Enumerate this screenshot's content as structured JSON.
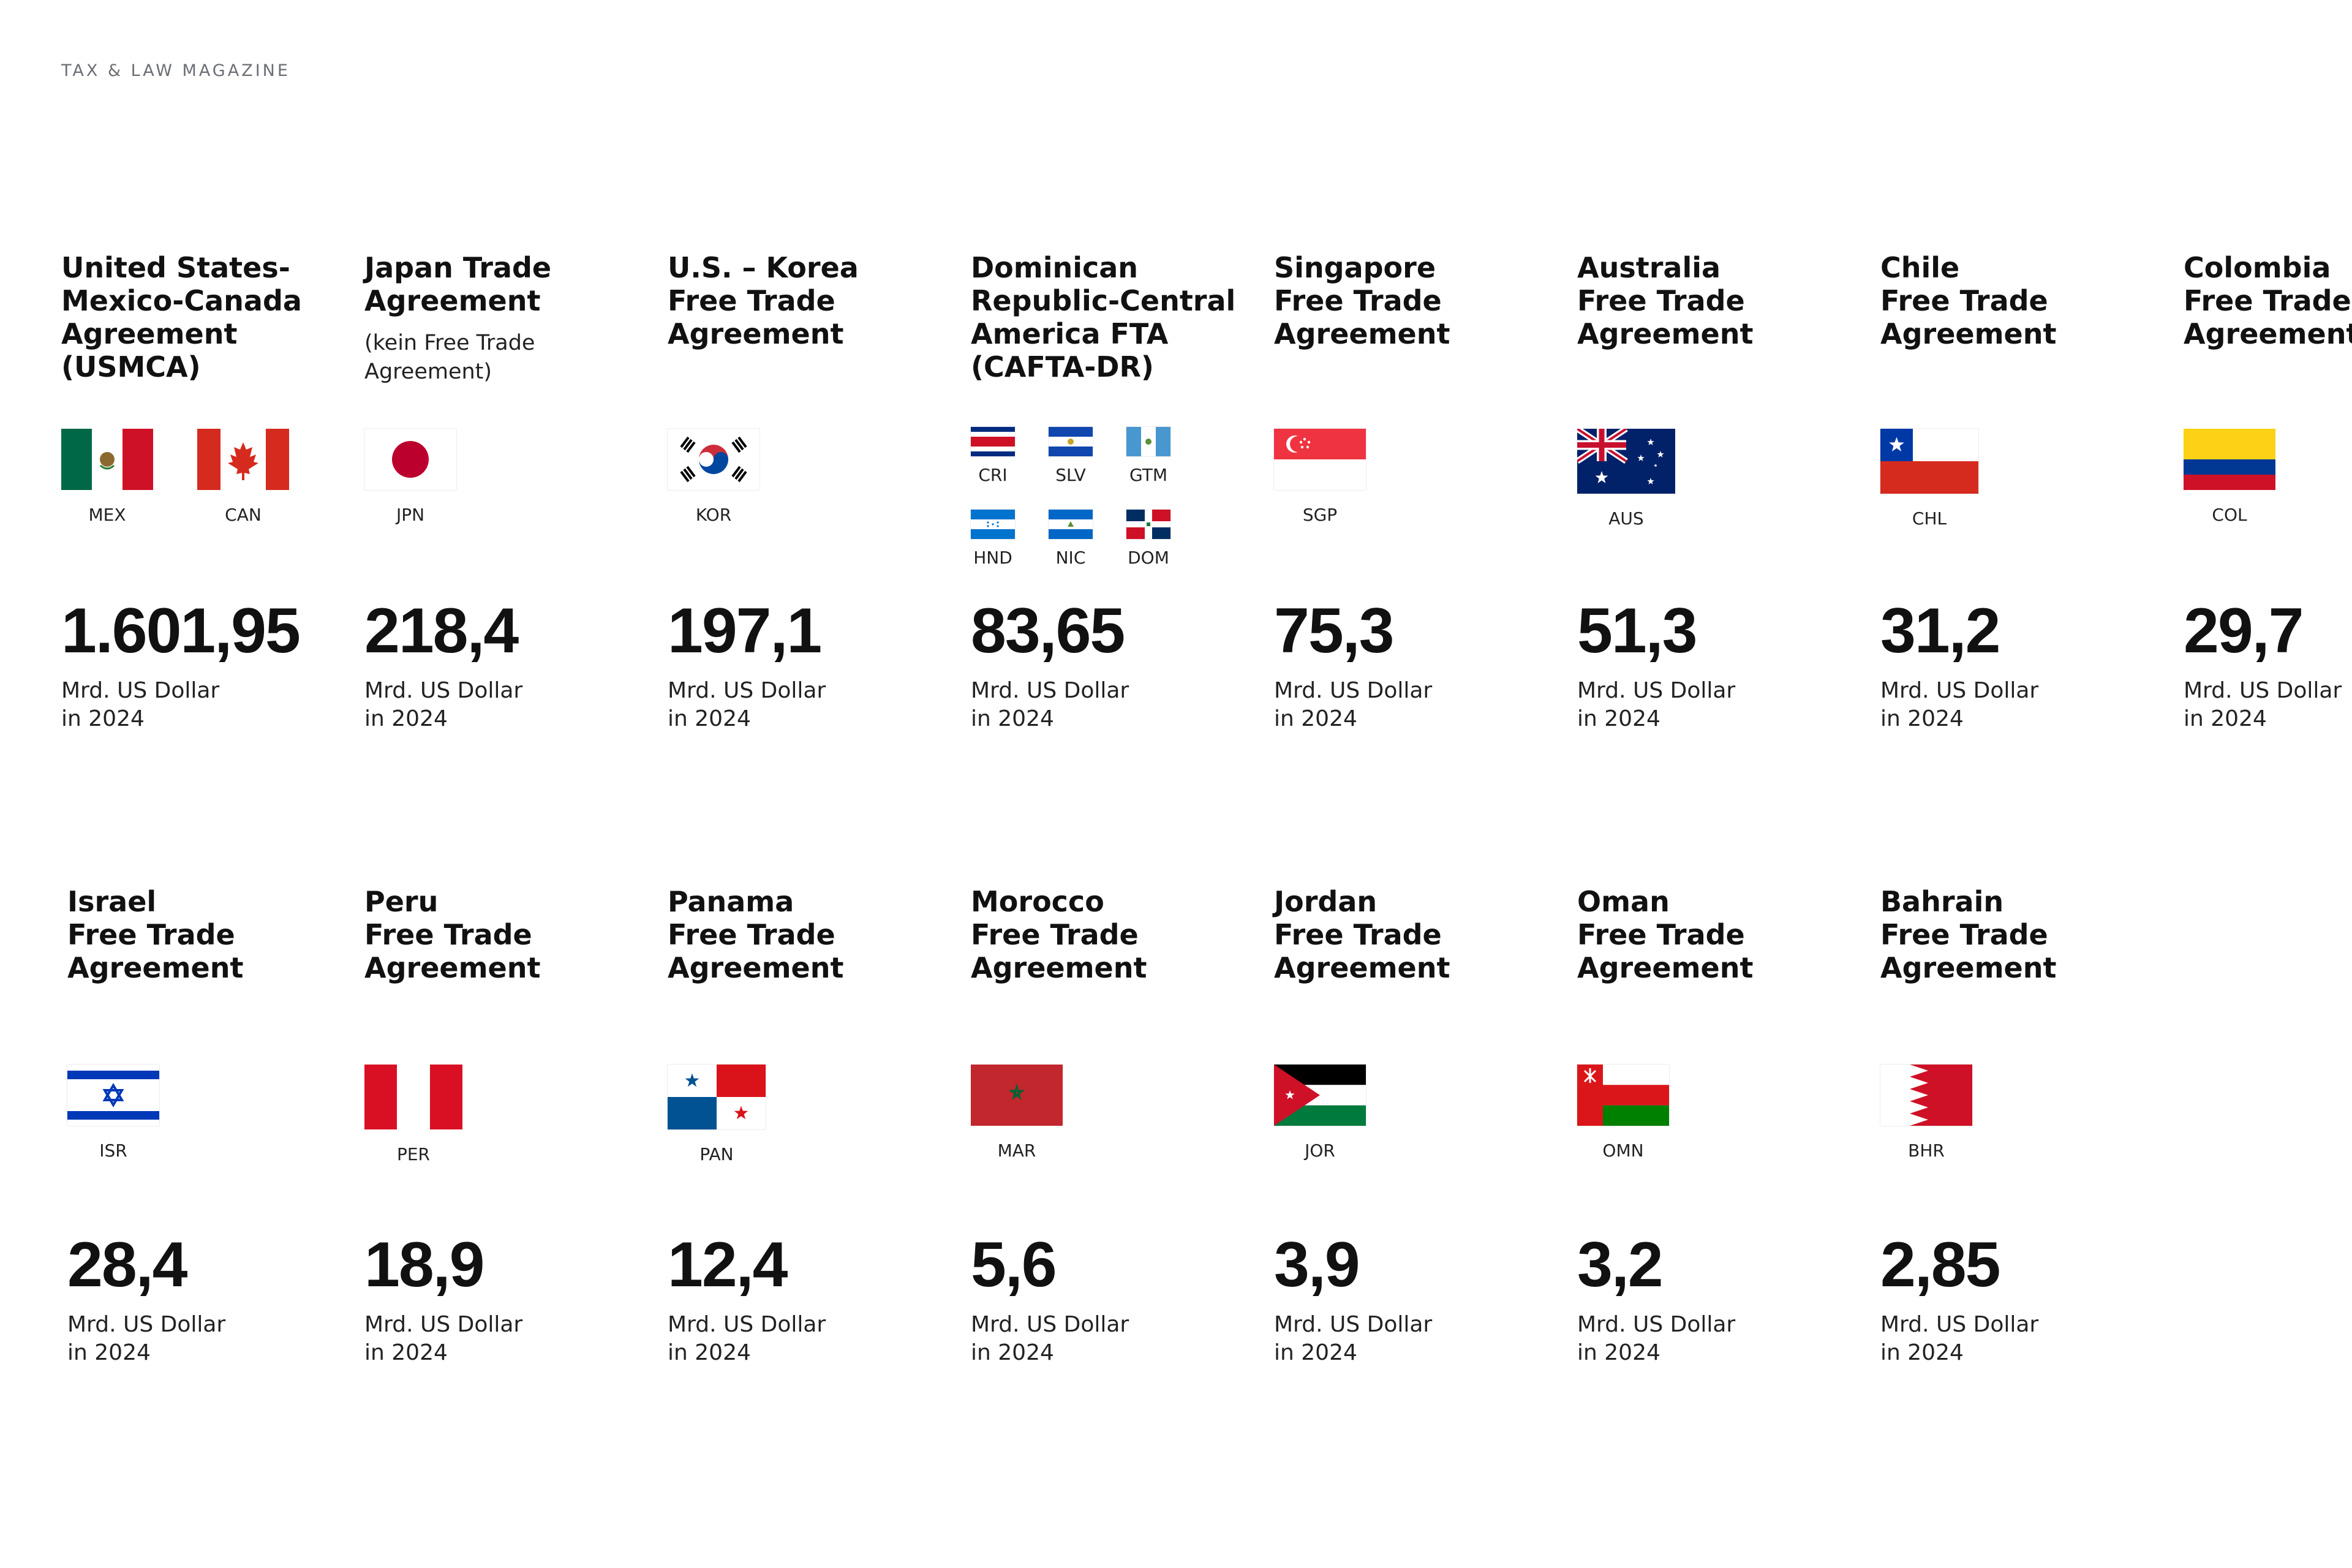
{
  "header": {
    "magazine": "TAX & LAW MAGAZINE"
  },
  "agreements": [
    {
      "title": "United States-\nMexico-Canada\nAgreement\n(USMCA)",
      "flags": [
        {
          "code": "MEX"
        },
        {
          "code": "CAN"
        }
      ],
      "value": "1.601,95",
      "unit": "Mrd. US Dollar",
      "year": "in 2024"
    },
    {
      "title": "Japan Trade\nAgreement",
      "subtitle": "(kein Free Trade\nAgreement)",
      "flags": [
        {
          "code": "JPN"
        }
      ],
      "value": "218,4",
      "unit": "Mrd. US Dollar",
      "year": "in 2024"
    },
    {
      "title": "U.S. – Korea\nFree Trade\nAgreement",
      "flags": [
        {
          "code": "KOR"
        }
      ],
      "value": "197,1",
      "unit": "Mrd. US Dollar",
      "year": "in 2024"
    },
    {
      "title": "Dominican\nRepublic-Central\nAmerica FTA\n(CAFTA-DR)",
      "flags": [
        {
          "code": "CRI"
        },
        {
          "code": "SLV"
        },
        {
          "code": "GTM"
        },
        {
          "code": "HND"
        },
        {
          "code": "NIC"
        },
        {
          "code": "DOM"
        }
      ],
      "value": "83,65",
      "unit": "Mrd. US Dollar",
      "year": "in 2024"
    },
    {
      "title": "Singapore\nFree Trade\nAgreement",
      "flags": [
        {
          "code": "SGP"
        }
      ],
      "value": "75,3",
      "unit": "Mrd. US Dollar",
      "year": "in 2024"
    },
    {
      "title": "Australia\nFree Trade\nAgreement",
      "flags": [
        {
          "code": "AUS"
        }
      ],
      "value": "51,3",
      "unit": "Mrd. US Dollar",
      "year": "in 2024"
    },
    {
      "title": "Chile\nFree Trade\nAgreement",
      "flags": [
        {
          "code": "CHL"
        }
      ],
      "value": "31,2",
      "unit": "Mrd. US Dollar",
      "year": "in 2024"
    },
    {
      "title": "Colombia\nFree Trade\nAgreement",
      "flags": [
        {
          "code": "COL"
        }
      ],
      "value": "29,7",
      "unit": "Mrd. US Dollar",
      "year": "in 2024"
    },
    {
      "title": "Israel\nFree Trade\nAgreement",
      "flags": [
        {
          "code": "ISR"
        }
      ],
      "value": "28,4",
      "unit": "Mrd. US Dollar",
      "year": "in 2024"
    },
    {
      "title": "Peru\nFree Trade\nAgreement",
      "flags": [
        {
          "code": "PER"
        }
      ],
      "value": "18,9",
      "unit": "Mrd. US Dollar",
      "year": "in 2024"
    },
    {
      "title": "Panama\nFree Trade\nAgreement",
      "flags": [
        {
          "code": "PAN"
        }
      ],
      "value": "12,4",
      "unit": "Mrd. US Dollar",
      "year": "in 2024"
    },
    {
      "title": "Morocco\nFree Trade\nAgreement",
      "flags": [
        {
          "code": "MAR"
        }
      ],
      "value": "5,6",
      "unit": "Mrd. US Dollar",
      "year": "in 2024"
    },
    {
      "title": "Jordan\nFree Trade\nAgreement",
      "flags": [
        {
          "code": "JOR"
        }
      ],
      "value": "3,9",
      "unit": "Mrd. US Dollar",
      "year": "in 2024"
    },
    {
      "title": "Oman\nFree Trade\nAgreement",
      "flags": [
        {
          "code": "OMN"
        }
      ],
      "value": "3,2",
      "unit": "Mrd. US Dollar",
      "year": "in 2024"
    },
    {
      "title": "Bahrain\nFree Trade\nAgreement",
      "flags": [
        {
          "code": "BHR"
        }
      ],
      "value": "2,85",
      "unit": "Mrd. US Dollar",
      "year": "in 2024"
    }
  ]
}
